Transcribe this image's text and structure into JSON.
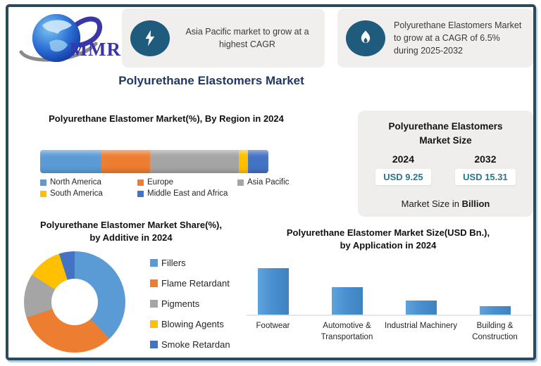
{
  "logo": {
    "text": "MMR"
  },
  "header_badges": [
    {
      "icon": "lightning-icon",
      "text": "Asia Pacific market to grow at a highest CAGR"
    },
    {
      "icon": "flame-icon",
      "text": "Polyurethane Elastomers Market to grow at a CAGR of 6.5% during 2025-2032"
    }
  ],
  "page_title": "Polyurethane Elastomers Market",
  "market_size_box": {
    "title": "Polyurethane Elastomers Market Size",
    "columns": [
      {
        "year": "2024",
        "value": "USD 9.25"
      },
      {
        "year": "2032",
        "value": "USD 15.31"
      }
    ],
    "note_prefix": "Market Size in ",
    "note_bold": "Billion"
  },
  "chart_data": [
    {
      "type": "bar",
      "variant": "horizontal-stacked",
      "title": "Polyurethane Elastomer Market(%), By Region in 2024",
      "units": "%",
      "xlim": [
        0,
        100
      ],
      "legend_position": "bottom",
      "series": [
        {
          "name": "North America",
          "value": 27,
          "color": "#5B9BD5"
        },
        {
          "name": "Europe",
          "value": 21,
          "color": "#ED7D31"
        },
        {
          "name": "Asia Pacific",
          "value": 39,
          "color": "#A5A5A5"
        },
        {
          "name": "South America",
          "value": 4,
          "color": "#FFC000"
        },
        {
          "name": "Middle East and Africa",
          "value": 9,
          "color": "#4472C4"
        }
      ]
    },
    {
      "type": "pie",
      "variant": "donut",
      "title": "Polyurethane Elastomer Market Share(%), by Additive in 2024",
      "units": "%",
      "legend_position": "right",
      "labels": [
        "Fillers",
        "Flame Retardant",
        "Pigments",
        "Blowing Agents",
        "Smoke Retardan"
      ],
      "values": [
        38,
        32,
        14,
        11,
        5
      ],
      "colors": [
        "#5B9BD5",
        "#ED7D31",
        "#A5A5A5",
        "#FFC000",
        "#4472C4"
      ]
    },
    {
      "type": "bar",
      "title": "Polyurethane Elastomer Market Size(USD Bn.), by Application in 2024",
      "units": "USD Bn.",
      "categories": [
        "Footwear",
        "Automotive & Transportation",
        "Industrial Machinery",
        "Building & Construction"
      ],
      "values": [
        3.0,
        1.8,
        0.9,
        0.55
      ],
      "ylim": [
        0,
        3.2
      ],
      "bar_color": "#4A90D0",
      "grid": false
    }
  ],
  "colors": {
    "frame_border": "#2C4A5A",
    "badge_bg": "#F0EFED",
    "icon_circle": "#1F5B7D",
    "title_navy": "#1F3864",
    "value_teal": "#26788C",
    "size_box_bg": "#EFEEEC"
  }
}
